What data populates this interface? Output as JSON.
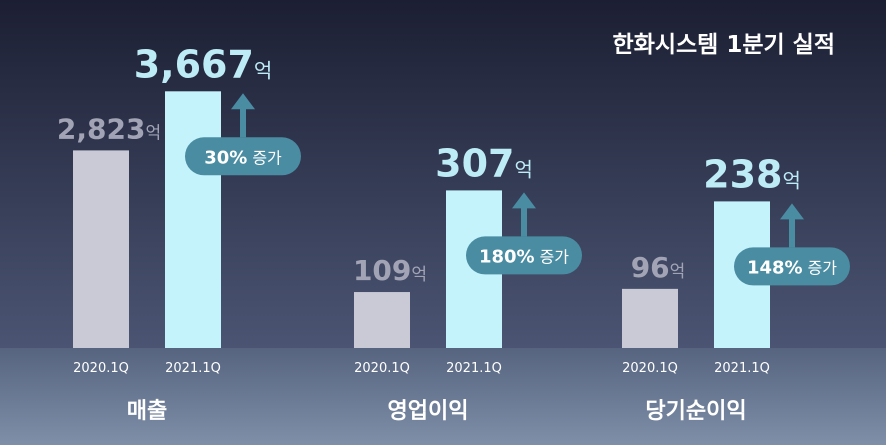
{
  "title": "한화시스템 1분기 실적",
  "chart_data": [
    {
      "type": "bar",
      "xlabel": "매출",
      "categories": [
        "2020.1Q",
        "2021.1Q"
      ],
      "values": [
        2823,
        3667
      ],
      "value_labels": [
        "2,823",
        "3,667"
      ],
      "unit": "억",
      "colors": [
        "#c9cad6",
        "#c4f3fb"
      ],
      "ylim": [
        0,
        4400
      ],
      "annotation": {
        "label": "30%",
        "text": "증가"
      }
    },
    {
      "type": "bar",
      "xlabel": "영업이익",
      "categories": [
        "2020.1Q",
        "2021.1Q"
      ],
      "values": [
        109,
        307
      ],
      "value_labels": [
        "109",
        "307"
      ],
      "unit": "억",
      "colors": [
        "#c9cad6",
        "#c4f3fb"
      ],
      "ylim": [
        0,
        600
      ],
      "annotation": {
        "label": "180%",
        "text": "증가"
      }
    },
    {
      "type": "bar",
      "xlabel": "당기순이익",
      "categories": [
        "2020.1Q",
        "2021.1Q"
      ],
      "values": [
        96,
        238
      ],
      "value_labels": [
        "96",
        "238"
      ],
      "unit": "억",
      "colors": [
        "#c9cad6",
        "#c4f3fb"
      ],
      "ylim": [
        0,
        500
      ],
      "annotation": {
        "label": "148%",
        "text": "증가"
      }
    }
  ]
}
